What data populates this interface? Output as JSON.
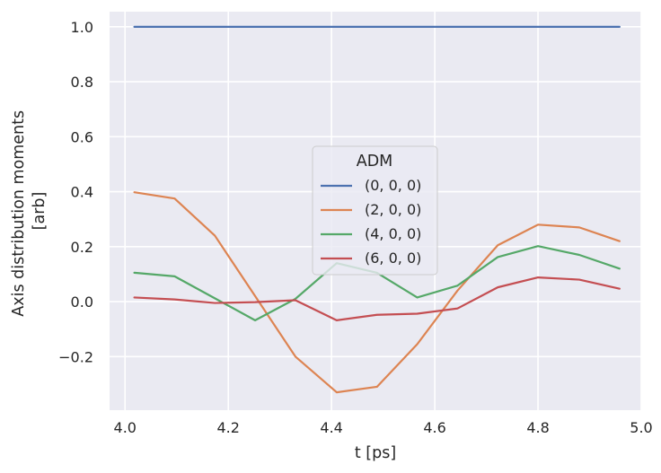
{
  "chart_data": {
    "type": "line",
    "title": "",
    "xlabel": "t [ps]",
    "ylabel_lines": [
      "Axis distribution moments",
      "[arb]"
    ],
    "xlim": [
      3.97,
      5.0
    ],
    "ylim": [
      -0.395,
      1.055
    ],
    "x_ticks": [
      4.0,
      4.2,
      4.4,
      4.6,
      4.8,
      5.0
    ],
    "x_tick_labels": [
      "4.0",
      "4.2",
      "4.4",
      "4.6",
      "4.8",
      "5.0"
    ],
    "y_ticks": [
      -0.2,
      0.0,
      0.2,
      0.4,
      0.6,
      0.8,
      1.0
    ],
    "y_tick_labels": [
      "−0.2",
      "0.0",
      "0.2",
      "0.4",
      "0.6",
      "0.8",
      "1.0"
    ],
    "grid": true,
    "legend": {
      "title": "ADM",
      "placement": "center"
    },
    "x": [
      4.018,
      4.096,
      4.174,
      4.252,
      4.33,
      4.41,
      4.488,
      4.566,
      4.644,
      4.722,
      4.8,
      4.88,
      4.958
    ],
    "series": [
      {
        "name": "(0, 0, 0)",
        "color": "#4c72b0",
        "values": [
          1.0,
          1.0,
          1.0,
          1.0,
          1.0,
          1.0,
          1.0,
          1.0,
          1.0,
          1.0,
          1.0,
          1.0,
          1.0
        ]
      },
      {
        "name": "(2, 0, 0)",
        "color": "#dd8452",
        "values": [
          0.398,
          0.375,
          0.24,
          0.02,
          -0.2,
          -0.33,
          -0.31,
          -0.155,
          0.04,
          0.205,
          0.28,
          0.27,
          0.22
        ]
      },
      {
        "name": "(4, 0, 0)",
        "color": "#55a868",
        "values": [
          0.105,
          0.092,
          0.012,
          -0.068,
          0.01,
          0.14,
          0.105,
          0.015,
          0.058,
          0.162,
          0.202,
          0.17,
          0.12
        ]
      },
      {
        "name": "(6, 0, 0)",
        "color": "#c44e52",
        "values": [
          0.015,
          0.008,
          -0.005,
          -0.002,
          0.005,
          -0.068,
          -0.048,
          -0.044,
          -0.025,
          0.052,
          0.088,
          0.08,
          0.047
        ]
      }
    ]
  }
}
